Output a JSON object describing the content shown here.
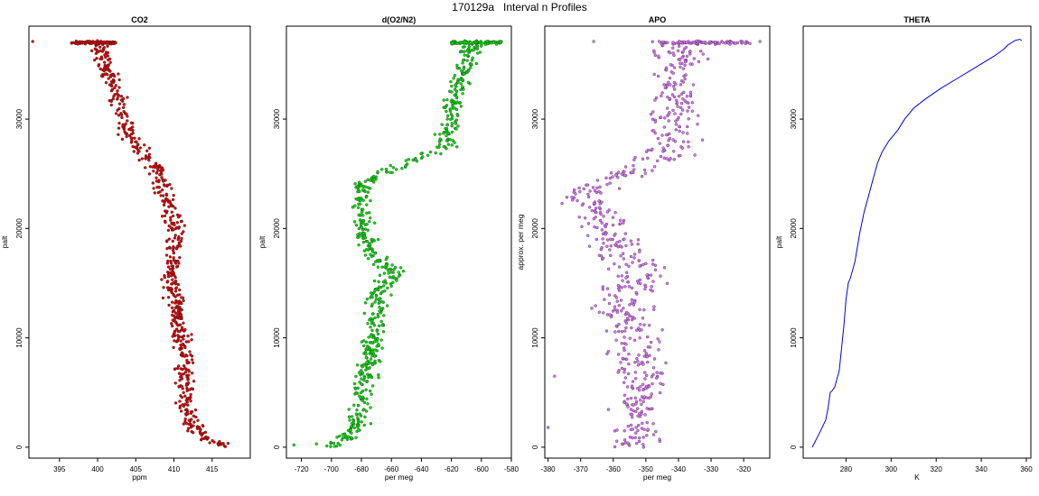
{
  "title": "170129a   Interval n Profiles",
  "chart_data": [
    {
      "type": "scatter",
      "title": "CO2",
      "xlabel": "ppm",
      "ylabel": "palt",
      "xlim": [
        391,
        420
      ],
      "ylim": [
        -1000,
        38500
      ],
      "xticks": [
        395,
        400,
        405,
        410,
        415
      ],
      "yticks": [
        0,
        10000,
        20000,
        30000
      ],
      "color": "#e00000",
      "profile": [
        [
          417,
          0
        ],
        [
          416,
          400
        ],
        [
          414,
          900
        ],
        [
          413,
          1500
        ],
        [
          412,
          2500
        ],
        [
          411.5,
          4000
        ],
        [
          411.5,
          6000
        ],
        [
          411.5,
          8000
        ],
        [
          411,
          10000
        ],
        [
          410.5,
          12000
        ],
        [
          410,
          14000
        ],
        [
          409.5,
          16000
        ],
        [
          410,
          18000
        ],
        [
          410,
          20000
        ],
        [
          409.5,
          22000
        ],
        [
          408.5,
          24000
        ],
        [
          407,
          26000
        ],
        [
          404.5,
          28000
        ],
        [
          403.5,
          30000
        ],
        [
          402.5,
          32000
        ],
        [
          401.5,
          34000
        ],
        [
          400.5,
          36000
        ],
        [
          400,
          37000
        ]
      ],
      "spread": 1.0,
      "top_band": [
        396.5,
        402.5
      ],
      "outliers": [
        [
          391.5,
          37100
        ]
      ]
    },
    {
      "type": "scatter",
      "title": "d(O2/N2)",
      "xlabel": "per meg",
      "ylabel": "palt",
      "xlim": [
        -730,
        -580
      ],
      "ylim": [
        -1000,
        38500
      ],
      "xticks": [
        -720,
        -700,
        -680,
        -660,
        -640,
        -620,
        -600,
        -580
      ],
      "yticks": [
        0,
        10000,
        20000,
        30000
      ],
      "color": "#00e000",
      "profile": [
        [
          -702,
          0
        ],
        [
          -692,
          700
        ],
        [
          -685,
          1500
        ],
        [
          -682,
          2500
        ],
        [
          -680,
          4000
        ],
        [
          -678,
          6000
        ],
        [
          -675,
          8000
        ],
        [
          -672,
          10000
        ],
        [
          -670,
          12000
        ],
        [
          -668,
          14000
        ],
        [
          -658,
          16000
        ],
        [
          -675,
          18000
        ],
        [
          -678,
          20000
        ],
        [
          -680,
          22000
        ],
        [
          -680,
          24000
        ],
        [
          -660,
          25500
        ],
        [
          -640,
          26500
        ],
        [
          -625,
          27500
        ],
        [
          -622,
          29000
        ],
        [
          -620,
          30500
        ],
        [
          -618,
          32000
        ],
        [
          -612,
          34000
        ],
        [
          -608,
          36000
        ],
        [
          -605,
          37000
        ]
      ],
      "spread": 6,
      "top_band": [
        -620,
        -586
      ],
      "outliers": [
        [
          -725,
          200
        ],
        [
          -710,
          300
        ]
      ]
    },
    {
      "type": "scatter",
      "title": "APO",
      "xlabel": "per meg",
      "ylabel": "approx. per meg",
      "xlim": [
        -381,
        -312
      ],
      "ylim": [
        -1000,
        38500
      ],
      "xticks": [
        -380,
        -370,
        -360,
        -350,
        -340,
        -330,
        -320
      ],
      "yticks": [
        0,
        10000,
        20000,
        30000
      ],
      "color": "#e070ff",
      "profile": [
        [
          -352,
          0
        ],
        [
          -353,
          2000
        ],
        [
          -352,
          4000
        ],
        [
          -352,
          6000
        ],
        [
          -353,
          8000
        ],
        [
          -354,
          10000
        ],
        [
          -355,
          12000
        ],
        [
          -356,
          14000
        ],
        [
          -352,
          16000
        ],
        [
          -358,
          18000
        ],
        [
          -362,
          20000
        ],
        [
          -366,
          22000
        ],
        [
          -368,
          23500
        ],
        [
          -356,
          25000
        ],
        [
          -345,
          26500
        ],
        [
          -342,
          28000
        ],
        [
          -341,
          30000
        ],
        [
          -340,
          32000
        ],
        [
          -340,
          34000
        ],
        [
          -340,
          36000
        ],
        [
          -340,
          37000
        ]
      ],
      "spread": 7,
      "top_band": [
        -348,
        -318
      ],
      "outliers": [
        [
          -366,
          37100
        ],
        [
          -315,
          37100
        ],
        [
          -378,
          6500
        ],
        [
          -380,
          1800
        ]
      ]
    },
    {
      "type": "line",
      "title": "THETA",
      "xlabel": "K",
      "ylabel": "palt",
      "xlim": [
        261,
        362
      ],
      "ylim": [
        -1000,
        38500
      ],
      "xticks": [
        280,
        300,
        320,
        340,
        360
      ],
      "yticks": [
        0,
        10000,
        20000,
        30000
      ],
      "color": "#0000dd",
      "x": [
        265,
        268,
        271,
        272,
        273,
        274,
        275,
        277,
        278,
        279,
        280,
        281,
        282,
        284,
        286,
        288,
        290,
        292,
        294,
        296,
        299,
        303,
        306,
        310,
        315,
        322,
        330,
        338,
        346,
        350,
        352,
        355,
        357,
        358
      ],
      "y": [
        0,
        1200,
        2500,
        3500,
        5000,
        5200,
        5500,
        7000,
        9000,
        11000,
        13500,
        15000,
        15500,
        17000,
        19500,
        21500,
        23000,
        24500,
        26000,
        27000,
        28000,
        29000,
        30000,
        31000,
        31800,
        32800,
        33800,
        34800,
        35800,
        36400,
        36800,
        37200,
        37300,
        37200
      ]
    }
  ]
}
